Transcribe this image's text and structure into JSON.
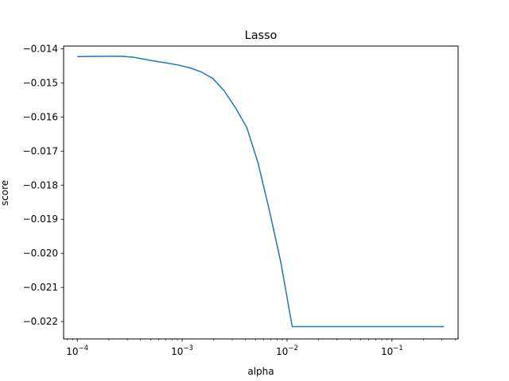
{
  "chart_data": {
    "type": "line",
    "title": "Lasso",
    "xlabel": "alpha",
    "ylabel": "score",
    "xscale": "log",
    "xlim": [
      7.41e-05,
      0.427
    ],
    "ylim": [
      -0.02251,
      -0.01392
    ],
    "grid": false,
    "line_color": "#1f77b4",
    "x_ticks": [
      {
        "value": 0.0001,
        "base": "10",
        "exp": "−4"
      },
      {
        "value": 0.001,
        "base": "10",
        "exp": "−3"
      },
      {
        "value": 0.01,
        "base": "10",
        "exp": "−2"
      },
      {
        "value": 0.1,
        "base": "10",
        "exp": "−1"
      }
    ],
    "y_ticks": [
      {
        "value": -0.014,
        "label": "−0.014"
      },
      {
        "value": -0.015,
        "label": "−0.015"
      },
      {
        "value": -0.016,
        "label": "−0.016"
      },
      {
        "value": -0.017,
        "label": "−0.017"
      },
      {
        "value": -0.018,
        "label": "−0.018"
      },
      {
        "value": -0.019,
        "label": "−0.019"
      },
      {
        "value": -0.02,
        "label": "−0.020"
      },
      {
        "value": -0.021,
        "label": "−0.021"
      },
      {
        "value": -0.022,
        "label": "−0.022"
      }
    ],
    "series": [
      {
        "x": [
          0.0001,
          0.000128,
          0.000164,
          0.00021,
          0.000269,
          0.000345,
          0.000442,
          0.000566,
          0.000725,
          0.000929,
          0.00119,
          0.00152,
          0.00196,
          0.00251,
          0.00322,
          0.00413,
          0.00529,
          0.00679,
          0.0087,
          0.0112,
          0.0143,
          0.0184,
          0.0236,
          0.0303,
          0.0389,
          0.0499,
          0.0641,
          0.0822,
          0.106,
          0.135,
          0.174,
          0.223,
          0.313
        ],
        "values": [
          -0.01423,
          -0.014225,
          -0.014222,
          -0.01422,
          -0.014222,
          -0.01425,
          -0.01431,
          -0.01437,
          -0.01442,
          -0.01448,
          -0.01456,
          -0.01468,
          -0.01487,
          -0.01523,
          -0.01573,
          -0.01631,
          -0.01735,
          -0.01875,
          -0.02025,
          -0.02215,
          -0.02215,
          -0.02215,
          -0.02215,
          -0.02215,
          -0.02215,
          -0.02215,
          -0.02215,
          -0.02215,
          -0.02215,
          -0.02215,
          -0.02215,
          -0.02215,
          -0.02215
        ]
      }
    ]
  }
}
